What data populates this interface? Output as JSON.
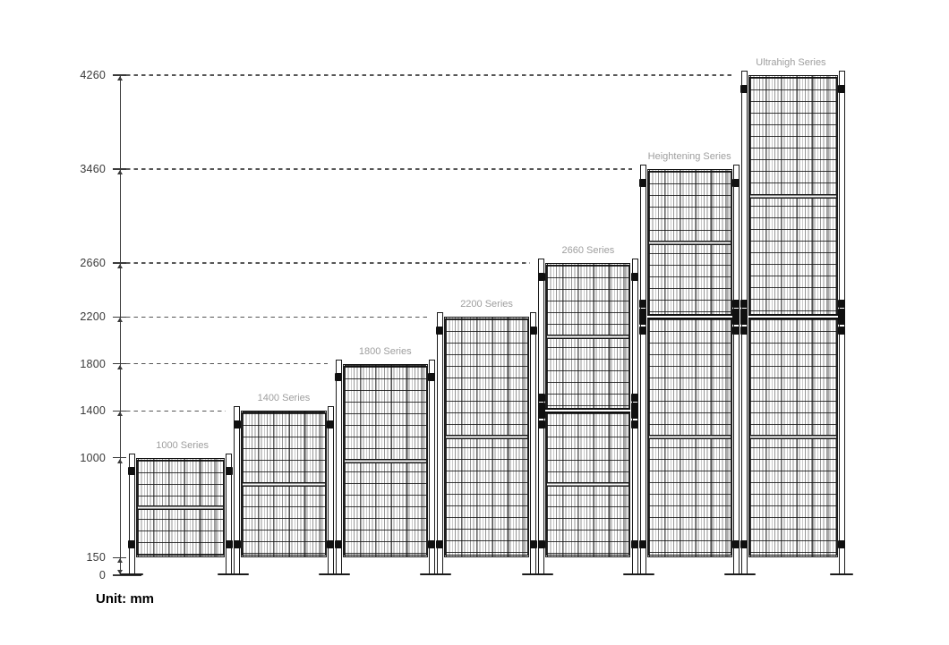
{
  "chart_data": {
    "type": "diagram",
    "description": "Comparative elevation drawing of wire-mesh fence series heights",
    "unit_label": "Unit: mm",
    "axis": {
      "tick_values_mm": [
        0,
        150,
        1000,
        1400,
        1800,
        2200,
        2660,
        3460,
        4260
      ],
      "ylim": [
        0,
        4260
      ],
      "orientation": "vertical",
      "grid": "dashed-leader-lines"
    },
    "mesh_bottom_mm": 150,
    "series": [
      {
        "name": "1000 Series",
        "height_mm": 1000,
        "segments_mm": [
          [
            150,
            1000
          ]
        ]
      },
      {
        "name": "1400 Series",
        "height_mm": 1400,
        "segments_mm": [
          [
            150,
            1400
          ]
        ]
      },
      {
        "name": "1800 Series",
        "height_mm": 1800,
        "segments_mm": [
          [
            150,
            1800
          ]
        ]
      },
      {
        "name": "2200 Series",
        "height_mm": 2200,
        "segments_mm": [
          [
            150,
            2200
          ]
        ]
      },
      {
        "name": "2660 Series",
        "height_mm": 2660,
        "segments_mm": [
          [
            150,
            1400
          ],
          [
            1400,
            2660
          ]
        ]
      },
      {
        "name": "Heightening Series",
        "height_mm": 3460,
        "segments_mm": [
          [
            150,
            2200
          ],
          [
            2200,
            3460
          ]
        ]
      },
      {
        "name": "Ultrahigh Series",
        "height_mm": 4260,
        "segments_mm": [
          [
            150,
            2200
          ],
          [
            2200,
            4260
          ]
        ]
      }
    ],
    "colors": {
      "line": "#1c1c1c",
      "series_label": "#9e9e9e",
      "axis_text": "#3a3a3a",
      "unit_text": "#000000"
    }
  }
}
